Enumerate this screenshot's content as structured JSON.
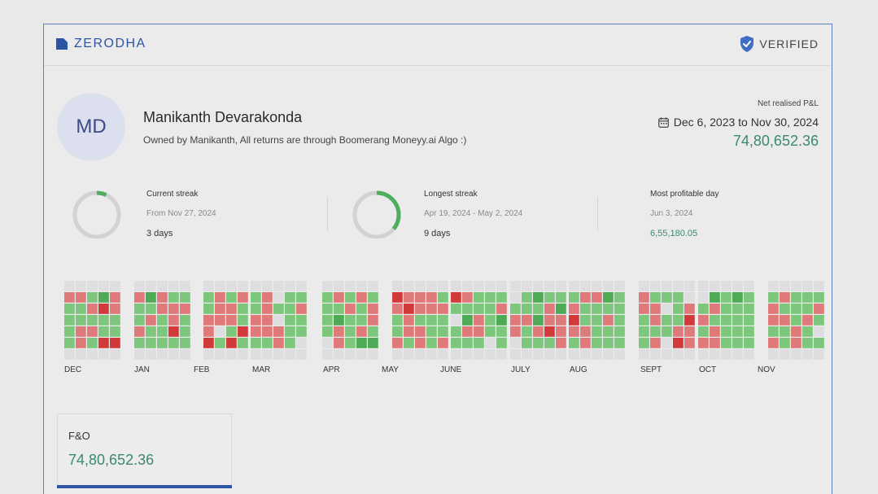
{
  "brand": {
    "name": "ZERODHA",
    "logo_icon": "zerodha-logo-icon",
    "color": "#2d54a3"
  },
  "badge": {
    "label": "VERIFIED",
    "icon": "shield-check-icon"
  },
  "profile": {
    "initials": "MD",
    "name": "Manikanth Devarakonda",
    "bio": "Owned by Manikanth, All returns are through Boomerang Moneyy.ai Algo :)"
  },
  "pnl": {
    "label": "Net realised P&L",
    "range": "Dec 6, 2023 to Nov 30, 2024",
    "value": "74,80,652.36",
    "value_color": "#3a8a6e"
  },
  "stats": [
    {
      "label": "Current streak",
      "sub": "From Nov 27, 2024",
      "value": "3 days",
      "ring_fraction": 0.07
    },
    {
      "label": "Longest streak",
      "sub": "Apr 19, 2024 - May 2, 2024",
      "value": "9 days",
      "ring_fraction": 0.36
    },
    {
      "label": "Most profitable day",
      "sub": "Jun 3, 2024",
      "value": "6,55,180.05"
    }
  ],
  "heatmap": {
    "months": [
      "DEC",
      "JAN",
      "FEB",
      "MAR",
      "APR",
      "MAY",
      "JUNE",
      "JULY",
      "AUG",
      "SEPT",
      "OCT",
      "NOV"
    ],
    "colors": {
      "profit": "#7cc77c",
      "loss": "#e07a7a",
      "big_profit": "#4faa55",
      "big_loss": "#d23a3a",
      "empty": "#dedee0"
    }
  },
  "segment": {
    "label": "F&O",
    "value": "74,80,652.36"
  }
}
